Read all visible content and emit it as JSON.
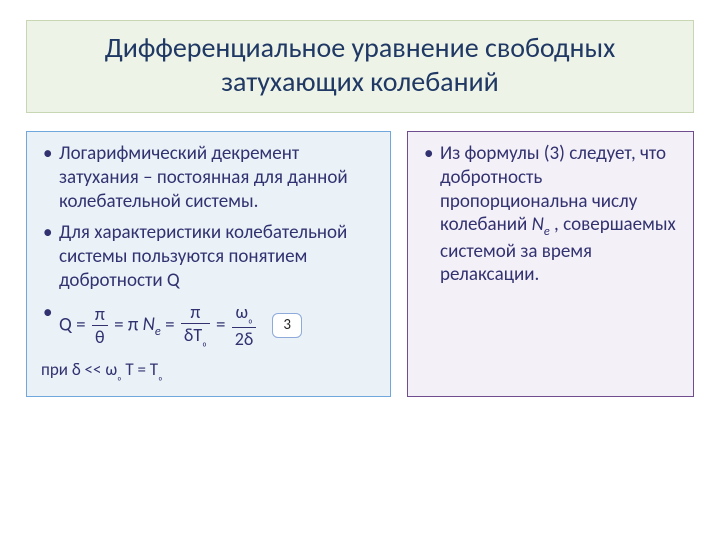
{
  "colors": {
    "title_bg": "#eef3e7",
    "title_border": "#c9d6b3",
    "title_color": "#1f3864",
    "left_bg": "#eaf2f8",
    "left_border": "#6fa8dc",
    "right_bg": "#f4f0f8",
    "right_border": "#704d8e",
    "body_color": "#323270",
    "tag_border": "#8eaadb"
  },
  "title": "Дифференциальное уравнение свободных затухающих колебаний",
  "left": {
    "b1": "Логарифмический декремент затухания – постоянная для данной колебательной системы.",
    "b2_a": "Для характеристики колебательной системы пользуются понятием ",
    "b2_q": "добротности Q",
    "formula": {
      "lead": "Q = ",
      "f1_num": "π",
      "f1_den": "θ",
      "eq1": " = π ",
      "ne": "N",
      "ne_sub": "e",
      "eq2": " = ",
      "f2_num": "π",
      "f2_den_a": "δT",
      "f2_den_sub": "₀",
      "eq3": " = ",
      "f3_num_a": "ω",
      "f3_num_sub": "₀",
      "f3_den": "2δ",
      "tag": "3"
    },
    "foot_a": "при δ << ω",
    "foot_sub1": "₀",
    "foot_b": "   T = T",
    "foot_sub2": "₀"
  },
  "right": {
    "b1_a": "Из формулы (3) следует, что добротность пропорциональна числу колебаний  ",
    "b1_ne": "N",
    "b1_ne_sub": "e",
    "b1_b": " , совершаемых системой за время релаксации."
  }
}
